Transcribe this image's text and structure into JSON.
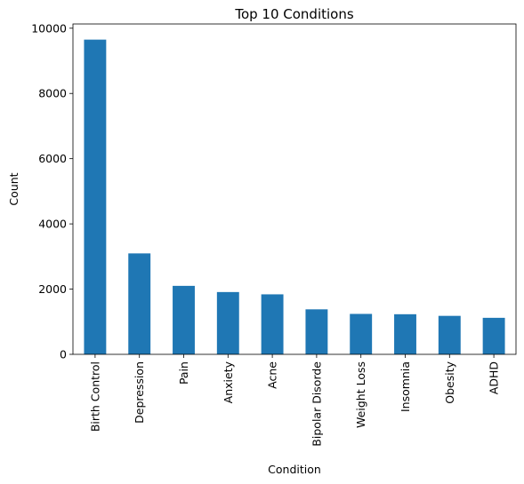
{
  "chart_data": {
    "type": "bar",
    "title": "Top 10 Conditions",
    "xlabel": "Condition",
    "ylabel": "Count",
    "categories": [
      "Birth Control",
      "Depression",
      "Pain",
      "Anxiety",
      "Acne",
      "Bipolar Disorde",
      "Weight Loss",
      "Insomnia",
      "Obesity",
      "ADHD"
    ],
    "values": [
      9650,
      3095,
      2100,
      1910,
      1840,
      1380,
      1240,
      1230,
      1180,
      1120
    ],
    "ylim": [
      0,
      10130
    ],
    "yticks": [
      0,
      2000,
      4000,
      6000,
      8000,
      10000
    ],
    "grid": false,
    "bar_color": "#1f77b4"
  }
}
